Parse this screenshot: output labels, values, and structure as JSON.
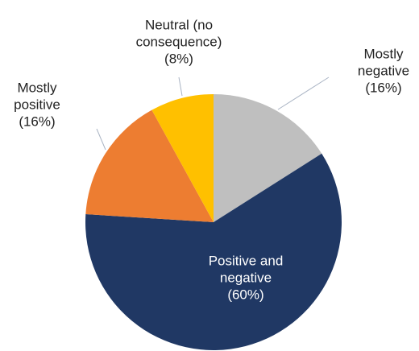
{
  "chart_data": {
    "type": "pie",
    "categories": [
      "Mostly negative",
      "Positive and negative",
      "Mostly positive",
      "Neutral (no consequence)"
    ],
    "values": [
      16,
      60,
      16,
      8
    ],
    "value_labels": [
      "(16%)",
      "(60%)",
      "(16%)",
      "(8%)"
    ],
    "colors": [
      "#bfbfbf",
      "#203864",
      "#ed7d31",
      "#ffc000"
    ],
    "label_colors": [
      "#222222",
      "#ffffff",
      "#222222",
      "#222222"
    ]
  }
}
